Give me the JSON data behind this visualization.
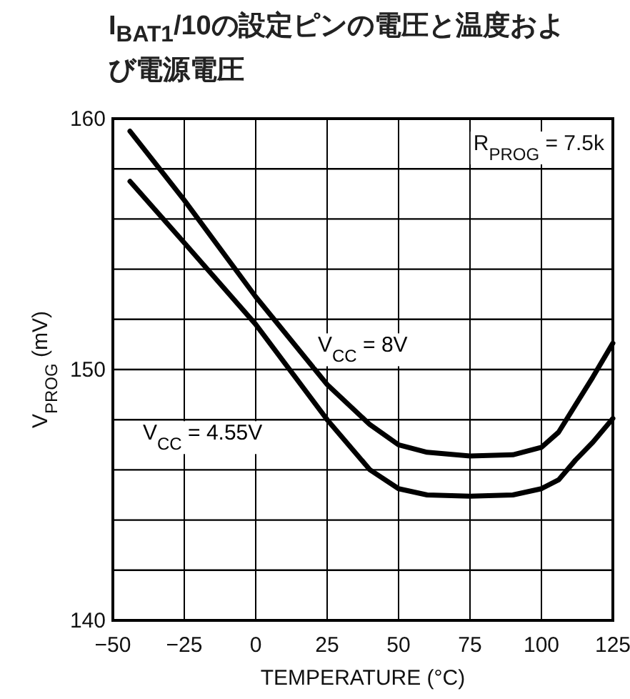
{
  "chart_data": {
    "type": "line",
    "title": "I$_{BAT1}$/10の設定ピンの電圧と温度および電源電圧",
    "xlabel": "TEMPERATURE (°C)",
    "ylabel": "V$_{PROG}$ (mV)",
    "xlim": [
      -50,
      125
    ],
    "xticks": [
      -50,
      -25,
      0,
      25,
      50,
      75,
      100,
      125
    ],
    "ylim": [
      140,
      160
    ],
    "yticks": [
      140,
      {
        "value": 142,
        "label": null
      },
      {
        "value": 144,
        "label": null
      },
      {
        "value": 146,
        "label": null
      },
      {
        "value": 148,
        "label": null
      },
      150,
      {
        "value": 152,
        "label": null
      },
      {
        "value": 154,
        "label": null
      },
      {
        "value": 156,
        "label": null
      },
      {
        "value": 158,
        "label": null
      },
      160
    ],
    "grid": true,
    "marker": "none",
    "line_style": "solid",
    "annotations": [
      "R$_{PROG}$ = 7.5k"
    ],
    "series": [
      {
        "name": "V$_{CC}$ = 8V",
        "color": "#000000",
        "x": [
          -44,
          -25,
          0,
          25,
          40,
          50,
          60,
          75,
          90,
          100,
          106,
          112,
          118,
          125
        ],
        "values": [
          159.5,
          156.75,
          152.9,
          149.4,
          147.8,
          147.0,
          146.7,
          146.55,
          146.6,
          146.9,
          147.5,
          148.6,
          149.7,
          151.05
        ]
      },
      {
        "name": "V$_{CC}$ = 4.55V",
        "color": "#000000",
        "x": [
          -44,
          -25,
          0,
          25,
          40,
          50,
          60,
          75,
          90,
          100,
          106,
          112,
          118,
          125
        ],
        "values": [
          157.5,
          155.05,
          151.8,
          148.0,
          146.0,
          145.25,
          145.0,
          144.95,
          145.0,
          145.25,
          145.6,
          146.4,
          147.1,
          148.05
        ]
      }
    ]
  }
}
